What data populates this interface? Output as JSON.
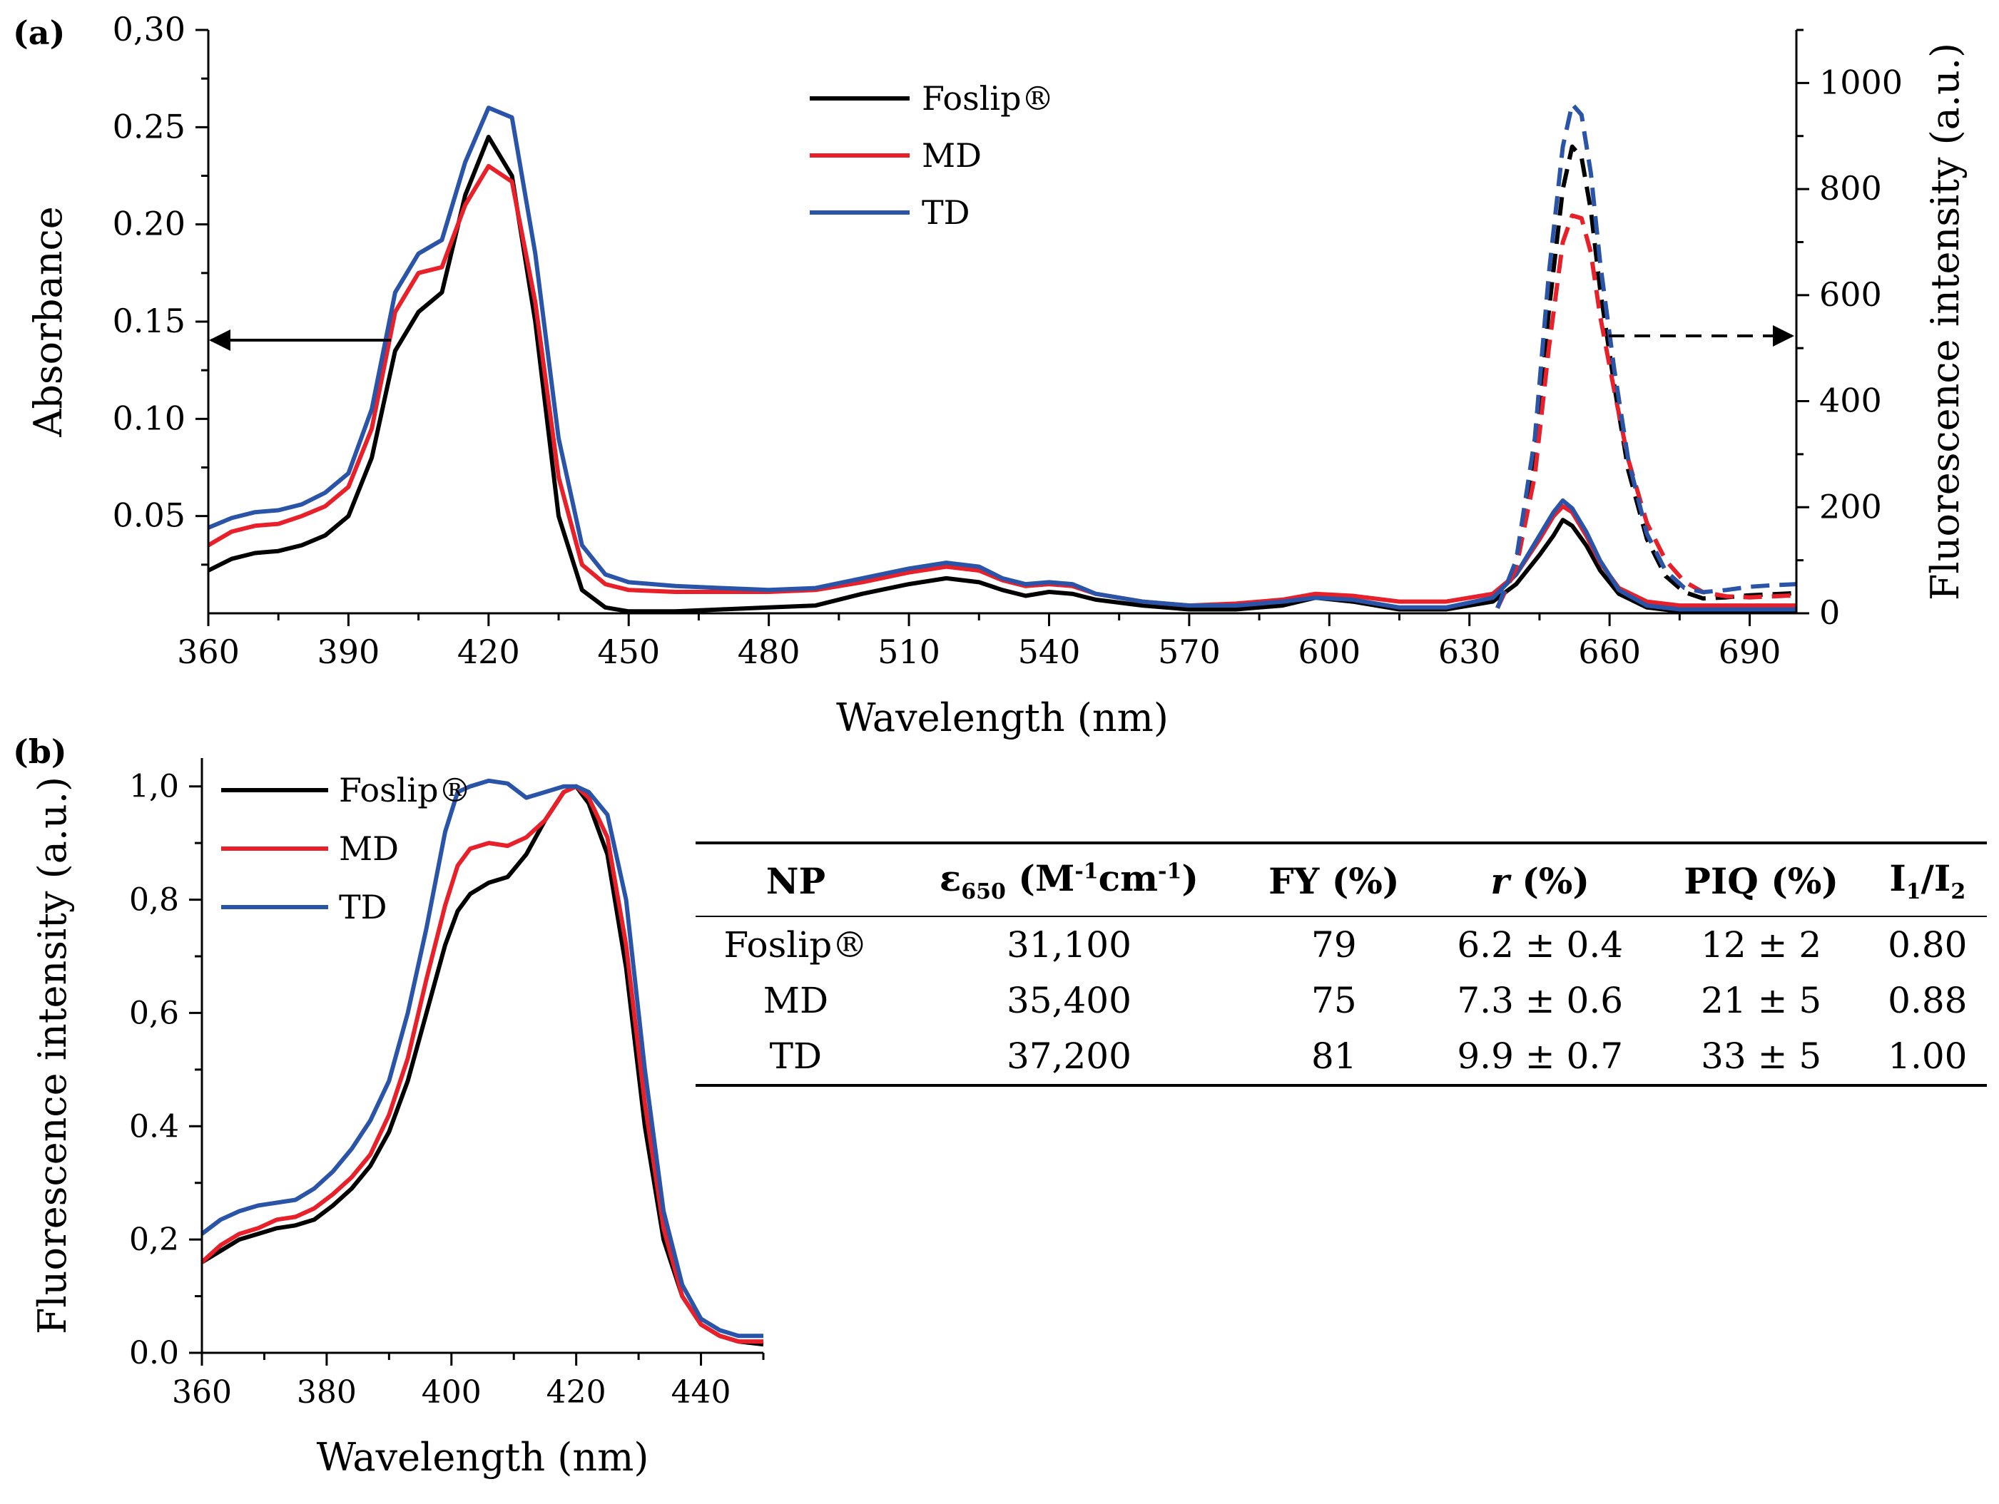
{
  "panel_a_label": "(a)",
  "panel_b_label": "(b)",
  "colors": {
    "Foslip": "#000000",
    "MD": "#e8202a",
    "TD": "#2a54a8"
  },
  "legend_a": [
    {
      "key": "Foslip",
      "label": "Foslip®"
    },
    {
      "key": "MD",
      "label": "MD"
    },
    {
      "key": "TD",
      "label": "TD"
    }
  ],
  "legend_b": [
    {
      "key": "Foslip",
      "label": "Foslip®"
    },
    {
      "key": "MD",
      "label": "MD"
    },
    {
      "key": "TD",
      "label": "TD"
    }
  ],
  "chart_data": [
    {
      "id": "panel-a",
      "type": "line",
      "title": "(a)",
      "xlabel": "Wavelength (nm)",
      "ylabel": "Absorbance",
      "y2label": "Fluorescence intensity (a.u.)",
      "xlim": [
        360,
        700
      ],
      "ylim": [
        0,
        0.3
      ],
      "y2lim": [
        0,
        1100
      ],
      "xticks": [
        360,
        390,
        420,
        450,
        480,
        510,
        540,
        570,
        600,
        630,
        660,
        690
      ],
      "yticks": [
        0.05,
        0.1,
        0.15,
        0.2,
        0.25,
        0.3
      ],
      "ytick_labels": [
        "0.05",
        "0.10",
        "0.15",
        "0.20",
        "0.25",
        "0,30"
      ],
      "y2ticks": [
        0,
        200,
        400,
        600,
        800,
        1000
      ],
      "annotations": [
        "arrow from absorbance curves to left axis",
        "dashed arrow from fluorescence curves to right axis"
      ],
      "series": [
        {
          "name": "Foslip® absorbance",
          "key": "Foslip",
          "axis": "left",
          "style": "solid",
          "x": [
            360,
            365,
            370,
            375,
            380,
            385,
            390,
            395,
            400,
            405,
            410,
            415,
            420,
            425,
            430,
            435,
            440,
            445,
            450,
            460,
            470,
            480,
            490,
            500,
            510,
            518,
            525,
            530,
            535,
            540,
            545,
            550,
            560,
            570,
            580,
            590,
            597,
            605,
            615,
            625,
            635,
            640,
            645,
            648,
            650,
            652,
            655,
            658,
            662,
            668,
            675,
            690,
            700
          ],
          "y": [
            0.022,
            0.028,
            0.031,
            0.032,
            0.035,
            0.04,
            0.05,
            0.08,
            0.135,
            0.155,
            0.165,
            0.215,
            0.245,
            0.225,
            0.15,
            0.05,
            0.012,
            0.003,
            0.001,
            0.001,
            0.002,
            0.003,
            0.004,
            0.01,
            0.015,
            0.018,
            0.016,
            0.012,
            0.009,
            0.011,
            0.01,
            0.007,
            0.004,
            0.002,
            0.002,
            0.004,
            0.008,
            0.006,
            0.002,
            0.002,
            0.006,
            0.015,
            0.03,
            0.04,
            0.048,
            0.045,
            0.035,
            0.022,
            0.01,
            0.003,
            0.001,
            0.001,
            0.001
          ]
        },
        {
          "name": "MD absorbance",
          "key": "MD",
          "axis": "left",
          "style": "solid",
          "x": [
            360,
            365,
            370,
            375,
            380,
            385,
            390,
            395,
            400,
            405,
            410,
            415,
            420,
            425,
            430,
            435,
            440,
            445,
            450,
            460,
            470,
            480,
            490,
            500,
            510,
            518,
            525,
            530,
            535,
            540,
            545,
            550,
            560,
            570,
            580,
            590,
            597,
            605,
            615,
            625,
            635,
            640,
            645,
            648,
            650,
            652,
            655,
            658,
            662,
            668,
            675,
            690,
            700
          ],
          "y": [
            0.035,
            0.042,
            0.045,
            0.046,
            0.05,
            0.055,
            0.065,
            0.095,
            0.155,
            0.175,
            0.178,
            0.21,
            0.23,
            0.222,
            0.16,
            0.07,
            0.025,
            0.015,
            0.012,
            0.011,
            0.011,
            0.011,
            0.012,
            0.016,
            0.021,
            0.024,
            0.022,
            0.017,
            0.014,
            0.015,
            0.014,
            0.01,
            0.006,
            0.004,
            0.005,
            0.007,
            0.01,
            0.009,
            0.006,
            0.006,
            0.01,
            0.02,
            0.038,
            0.05,
            0.055,
            0.052,
            0.04,
            0.026,
            0.013,
            0.006,
            0.004,
            0.004,
            0.004
          ]
        },
        {
          "name": "TD absorbance",
          "key": "TD",
          "axis": "left",
          "style": "solid",
          "x": [
            360,
            365,
            370,
            375,
            380,
            385,
            390,
            395,
            400,
            405,
            410,
            415,
            420,
            425,
            430,
            435,
            440,
            445,
            450,
            460,
            470,
            480,
            490,
            500,
            510,
            518,
            525,
            530,
            535,
            540,
            545,
            550,
            560,
            570,
            580,
            590,
            597,
            605,
            615,
            625,
            635,
            640,
            645,
            648,
            650,
            652,
            655,
            658,
            662,
            668,
            675,
            690,
            700
          ],
          "y": [
            0.044,
            0.049,
            0.052,
            0.053,
            0.056,
            0.062,
            0.072,
            0.105,
            0.165,
            0.185,
            0.192,
            0.232,
            0.26,
            0.255,
            0.185,
            0.09,
            0.035,
            0.02,
            0.016,
            0.014,
            0.013,
            0.012,
            0.013,
            0.018,
            0.023,
            0.026,
            0.024,
            0.018,
            0.015,
            0.016,
            0.015,
            0.01,
            0.006,
            0.004,
            0.004,
            0.006,
            0.008,
            0.007,
            0.003,
            0.003,
            0.008,
            0.02,
            0.04,
            0.052,
            0.058,
            0.054,
            0.042,
            0.027,
            0.012,
            0.004,
            0.002,
            0.002,
            0.002
          ]
        },
        {
          "name": "Foslip® fluorescence",
          "key": "Foslip",
          "axis": "right",
          "style": "dashed",
          "x": [
            636,
            640,
            644,
            647,
            650,
            652,
            654,
            656,
            658,
            661,
            664,
            668,
            672,
            676,
            680,
            685,
            690,
            695,
            700
          ],
          "y": [
            10,
            90,
            290,
            570,
            800,
            880,
            860,
            760,
            610,
            430,
            270,
            140,
            70,
            40,
            28,
            30,
            34,
            36,
            38
          ]
        },
        {
          "name": "MD fluorescence",
          "key": "MD",
          "axis": "right",
          "style": "dashed",
          "x": [
            636,
            640,
            644,
            647,
            650,
            652,
            654,
            656,
            658,
            661,
            664,
            668,
            672,
            676,
            680,
            685,
            690,
            695,
            700
          ],
          "y": [
            10,
            85,
            260,
            500,
            700,
            750,
            745,
            680,
            560,
            420,
            290,
            170,
            100,
            60,
            40,
            32,
            30,
            32,
            34
          ]
        },
        {
          "name": "TD fluorescence",
          "key": "TD",
          "axis": "right",
          "style": "dashed",
          "x": [
            636,
            640,
            644,
            647,
            650,
            652,
            654,
            656,
            658,
            661,
            664,
            668,
            672,
            676,
            680,
            685,
            690,
            695,
            700
          ],
          "y": [
            10,
            100,
            330,
            640,
            880,
            960,
            940,
            830,
            660,
            460,
            290,
            150,
            80,
            48,
            40,
            44,
            50,
            53,
            55
          ]
        }
      ]
    },
    {
      "id": "panel-b",
      "type": "line",
      "title": "(b)",
      "xlabel": "Wavelength (nm)",
      "ylabel": "Fluorescence intensity (a.u.)",
      "xlim": [
        360,
        450
      ],
      "ylim": [
        0,
        1.05
      ],
      "xticks": [
        360,
        380,
        400,
        420,
        440
      ],
      "yticks": [
        0,
        0.2,
        0.4,
        0.6,
        0.8,
        1.0
      ],
      "ytick_labels": [
        "0.0",
        "0,2",
        "0.4",
        "0,6",
        "0,8",
        "1,0"
      ],
      "series": [
        {
          "name": "Foslip®",
          "key": "Foslip",
          "x": [
            360,
            363,
            366,
            369,
            372,
            375,
            378,
            381,
            384,
            387,
            390,
            393,
            396,
            399,
            401,
            403,
            406,
            409,
            412,
            415,
            418,
            420,
            422,
            425,
            428,
            431,
            434,
            437,
            440,
            443,
            446,
            450
          ],
          "y": [
            0.16,
            0.18,
            0.2,
            0.21,
            0.22,
            0.225,
            0.235,
            0.26,
            0.29,
            0.33,
            0.39,
            0.48,
            0.6,
            0.72,
            0.78,
            0.81,
            0.83,
            0.84,
            0.88,
            0.94,
            0.99,
            1.0,
            0.97,
            0.88,
            0.68,
            0.4,
            0.2,
            0.1,
            0.05,
            0.03,
            0.02,
            0.015
          ]
        },
        {
          "name": "MD",
          "key": "MD",
          "x": [
            360,
            363,
            366,
            369,
            372,
            375,
            378,
            381,
            384,
            387,
            390,
            393,
            396,
            399,
            401,
            403,
            406,
            409,
            412,
            415,
            418,
            420,
            422,
            425,
            428,
            431,
            434,
            437,
            440,
            443,
            446,
            450
          ],
          "y": [
            0.16,
            0.19,
            0.21,
            0.22,
            0.235,
            0.24,
            0.255,
            0.28,
            0.31,
            0.35,
            0.42,
            0.52,
            0.66,
            0.79,
            0.86,
            0.89,
            0.9,
            0.895,
            0.91,
            0.94,
            0.99,
            1.0,
            0.98,
            0.91,
            0.72,
            0.44,
            0.22,
            0.1,
            0.05,
            0.03,
            0.02,
            0.02
          ]
        },
        {
          "name": "TD",
          "key": "TD",
          "x": [
            360,
            363,
            366,
            369,
            372,
            375,
            378,
            381,
            384,
            387,
            390,
            393,
            396,
            399,
            401,
            403,
            406,
            409,
            412,
            415,
            418,
            420,
            422,
            425,
            428,
            431,
            434,
            437,
            440,
            443,
            446,
            450
          ],
          "y": [
            0.21,
            0.235,
            0.25,
            0.26,
            0.265,
            0.27,
            0.29,
            0.32,
            0.36,
            0.41,
            0.48,
            0.6,
            0.75,
            0.92,
            0.99,
            1.0,
            1.01,
            1.005,
            0.98,
            0.99,
            1.0,
            1.0,
            0.99,
            0.95,
            0.8,
            0.5,
            0.25,
            0.12,
            0.06,
            0.04,
            0.03,
            0.03
          ]
        }
      ]
    },
    {
      "id": "np-table",
      "type": "table",
      "columns": [
        "NP",
        "ε 650 (M-1cm-1)",
        "FY (%)",
        "r (%)",
        "PIQ (%)",
        "I1/I2"
      ],
      "rows": [
        [
          "Foslip®",
          "31,100",
          "79",
          "6.2 ± 0.4",
          "12 ± 2",
          "0.80"
        ],
        [
          "MD",
          "35,400",
          "75",
          "7.3 ± 0.6",
          "21 ± 5",
          "0.88"
        ],
        [
          "TD",
          "37,200",
          "81",
          "9.9 ± 0.7",
          "33 ± 5",
          "1.00"
        ]
      ]
    }
  ],
  "table": {
    "headers": {
      "np": "NP",
      "eps_symbol": "ε",
      "eps_sub": "650",
      "eps_unit_a": "(M",
      "eps_exp1": "-1",
      "eps_unit_b": "cm",
      "eps_exp2": "-1",
      "eps_unit_c": ")",
      "fy": "FY (%)",
      "r_symbol": "r",
      "r_unit": "(%)",
      "piq": "PIQ (%)",
      "ratio_i1": "I",
      "ratio_sub1": "1",
      "ratio_slash": "/I",
      "ratio_sub2": "2"
    },
    "rows": [
      {
        "np": "Foslip®",
        "eps": "31,100",
        "fy": "79",
        "r": "6.2 ± 0.4",
        "piq": "12 ± 2",
        "ratio": "0.80"
      },
      {
        "np": "MD",
        "eps": "35,400",
        "fy": "75",
        "r": "7.3 ± 0.6",
        "piq": "21 ± 5",
        "ratio": "0.88"
      },
      {
        "np": "TD",
        "eps": "37,200",
        "fy": "81",
        "r": "9.9 ± 0.7",
        "piq": "33 ± 5",
        "ratio": "1.00"
      }
    ]
  }
}
